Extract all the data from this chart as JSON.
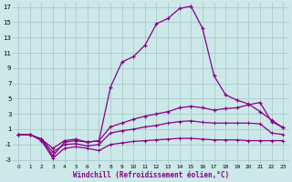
{
  "xlabel": "Windchill (Refroidissement éolien,°C)",
  "background_color": "#cce8e8",
  "grid_color": "#aacccc",
  "line_color": "#880088",
  "xlim": [
    -0.5,
    23.5
  ],
  "ylim": [
    -3.5,
    17.5
  ],
  "ytick_values": [
    -3,
    -1,
    1,
    3,
    5,
    7,
    9,
    11,
    13,
    15,
    17
  ],
  "line1_x": [
    0,
    1,
    2,
    3,
    4,
    5,
    6,
    7,
    8,
    9,
    10,
    11,
    12,
    13,
    14,
    15,
    16,
    17,
    18,
    19,
    20,
    21,
    22,
    23
  ],
  "line1_y": [
    0.3,
    0.3,
    -0.3,
    -2.5,
    -0.7,
    -0.5,
    -0.7,
    -0.5,
    6.5,
    9.8,
    10.5,
    12.0,
    14.8,
    15.5,
    16.8,
    17.1,
    14.2,
    8.0,
    5.5,
    4.8,
    4.3,
    3.3,
    2.2,
    1.2
  ],
  "line2_x": [
    0,
    1,
    2,
    3,
    4,
    5,
    6,
    7,
    8,
    9,
    10,
    11,
    12,
    13,
    14,
    15,
    16,
    17,
    18,
    19,
    20,
    21,
    22,
    23
  ],
  "line2_y": [
    0.3,
    0.3,
    -0.3,
    -1.5,
    -0.5,
    -0.3,
    -0.7,
    -0.5,
    1.3,
    1.8,
    2.3,
    2.7,
    3.0,
    3.3,
    3.8,
    4.0,
    3.8,
    3.5,
    3.7,
    3.8,
    4.2,
    4.5,
    2.0,
    1.2
  ],
  "line3_x": [
    0,
    1,
    2,
    3,
    4,
    5,
    6,
    7,
    8,
    9,
    10,
    11,
    12,
    13,
    14,
    15,
    16,
    17,
    18,
    19,
    20,
    21,
    22,
    23
  ],
  "line3_y": [
    0.3,
    0.3,
    -0.3,
    -2.0,
    -1.0,
    -0.9,
    -1.2,
    -1.0,
    0.5,
    0.8,
    1.0,
    1.3,
    1.5,
    1.8,
    2.0,
    2.1,
    1.9,
    1.8,
    1.8,
    1.8,
    1.8,
    1.7,
    0.5,
    0.3
  ],
  "line4_x": [
    0,
    1,
    2,
    3,
    4,
    5,
    6,
    7,
    8,
    9,
    10,
    11,
    12,
    13,
    14,
    15,
    16,
    17,
    18,
    19,
    20,
    21,
    22,
    23
  ],
  "line4_y": [
    0.3,
    0.3,
    -0.5,
    -2.8,
    -1.5,
    -1.3,
    -1.5,
    -1.8,
    -1.0,
    -0.8,
    -0.6,
    -0.5,
    -0.4,
    -0.3,
    -0.2,
    -0.2,
    -0.3,
    -0.4,
    -0.4,
    -0.4,
    -0.5,
    -0.5,
    -0.5,
    -0.5
  ]
}
